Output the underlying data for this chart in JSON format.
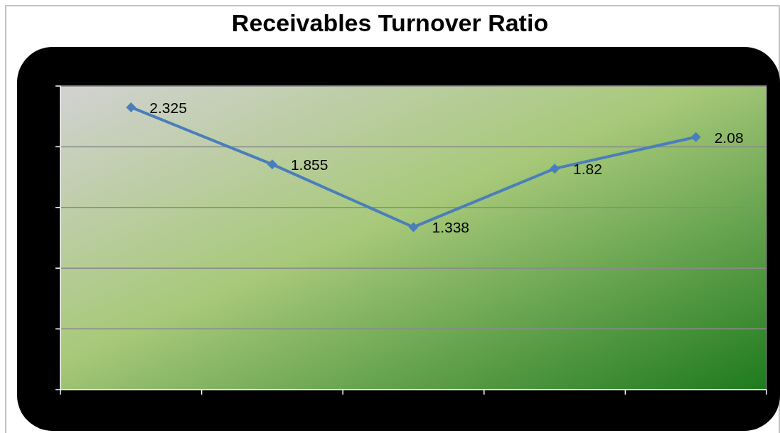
{
  "chart_data": {
    "type": "line",
    "title": "Receivables Turnover Ratio",
    "categories": [
      null,
      null,
      null,
      null,
      null
    ],
    "series": [
      {
        "color": "#4a7ebb",
        "values": [
          2.325,
          1.855,
          1.338,
          1.82,
          2.08
        ]
      }
    ],
    "ylim": [
      0,
      2.5
    ],
    "yticks": [
      {
        "value": 0,
        "label": null
      },
      {
        "value": 0.5,
        "label": null
      },
      {
        "value": 1,
        "label": null
      },
      {
        "value": 1.5,
        "label": null
      },
      {
        "value": 2,
        "label": null
      },
      {
        "value": 2.5,
        "label": null
      }
    ],
    "grid": "y",
    "data_labels": true,
    "marker": "diamond"
  }
}
